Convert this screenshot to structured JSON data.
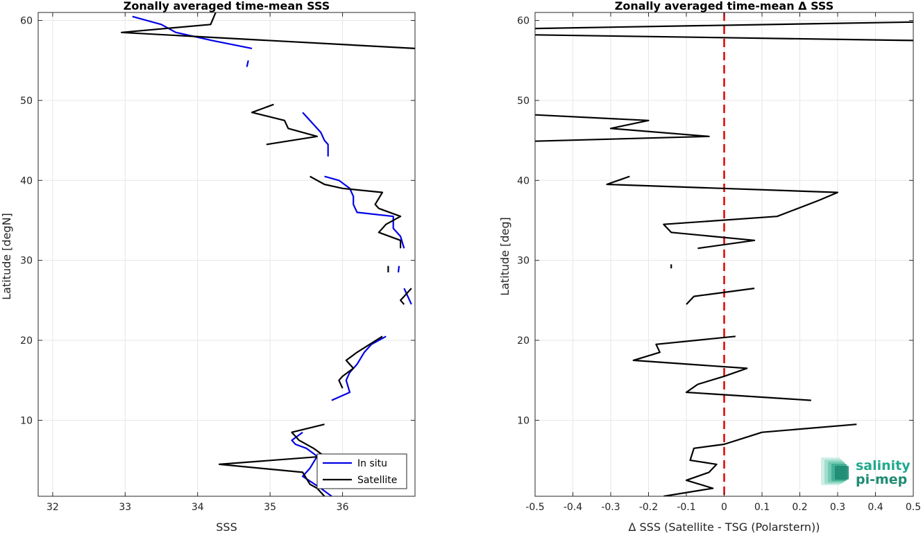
{
  "chart_data": [
    {
      "type": "line",
      "title": "Zonally averaged time-mean SSS",
      "xlabel": "SSS",
      "ylabel": "Latitude [degN]",
      "xlim": [
        31.8,
        37
      ],
      "ylim": [
        0.5,
        61
      ],
      "xticks": [
        32,
        33,
        34,
        35,
        36
      ],
      "yticks": [
        10,
        20,
        30,
        40,
        50,
        60
      ],
      "grid": true,
      "legend": "bottom-right",
      "series": [
        {
          "name": "In situ",
          "color": "#0000e6",
          "segments": [
            [
              [
                33.1,
                60.5
              ],
              [
                33.5,
                59.5
              ],
              [
                33.7,
                58.5
              ],
              [
                34.2,
                57.5
              ],
              [
                34.75,
                56.5
              ]
            ],
            [
              [
                34.68,
                54.2
              ],
              [
                34.7,
                55.0
              ]
            ],
            [
              [
                35.45,
                48.5
              ],
              [
                35.6,
                47.0
              ],
              [
                35.7,
                46.0
              ],
              [
                35.75,
                45.0
              ],
              [
                35.8,
                44.5
              ],
              [
                35.8,
                43.0
              ]
            ],
            [
              [
                35.75,
                40.5
              ],
              [
                35.95,
                40.0
              ],
              [
                36.1,
                39.0
              ],
              [
                36.15,
                38.0
              ],
              [
                36.15,
                37.0
              ],
              [
                36.2,
                36.0
              ],
              [
                36.7,
                35.5
              ],
              [
                36.7,
                34.0
              ],
              [
                36.8,
                33.0
              ],
              [
                36.85,
                31.5
              ]
            ],
            [
              [
                36.78,
                29.3
              ],
              [
                36.77,
                28.5
              ]
            ],
            [
              [
                36.85,
                26.5
              ],
              [
                36.95,
                24.5
              ]
            ],
            [
              [
                36.6,
                20.5
              ],
              [
                36.4,
                19.5
              ],
              [
                36.3,
                18.5
              ],
              [
                36.2,
                17.0
              ],
              [
                36.1,
                16.0
              ],
              [
                36.05,
                15.0
              ],
              [
                36.1,
                13.5
              ],
              [
                35.85,
                12.5
              ]
            ],
            [
              [
                35.45,
                8.5
              ],
              [
                35.3,
                7.5
              ],
              [
                35.35,
                7.0
              ],
              [
                35.5,
                6.5
              ],
              [
                35.65,
                5.5
              ],
              [
                35.55,
                4.0
              ],
              [
                35.45,
                3.0
              ],
              [
                35.7,
                1.5
              ],
              [
                35.85,
                0.5
              ]
            ]
          ]
        },
        {
          "name": "Satellite",
          "color": "#000000",
          "segments": [
            [
              [
                34.25,
                61.0
              ],
              [
                34.18,
                59.5
              ],
              [
                32.95,
                58.5
              ],
              [
                37.0,
                56.5
              ]
            ],
            [
              [
                35.05,
                49.5
              ],
              [
                34.75,
                48.5
              ],
              [
                35.2,
                47.5
              ],
              [
                35.25,
                46.5
              ],
              [
                35.65,
                45.5
              ],
              [
                34.95,
                44.5
              ]
            ],
            [
              [
                35.55,
                40.5
              ],
              [
                35.75,
                39.5
              ],
              [
                36.0,
                39.0
              ],
              [
                36.55,
                38.5
              ],
              [
                36.45,
                37.0
              ],
              [
                36.5,
                36.5
              ],
              [
                36.8,
                35.5
              ],
              [
                36.6,
                34.5
              ],
              [
                36.5,
                33.5
              ],
              [
                36.8,
                32.5
              ],
              [
                36.8,
                31.5
              ]
            ],
            [
              [
                36.63,
                29.3
              ],
              [
                36.63,
                28.5
              ]
            ],
            [
              [
                36.95,
                26.5
              ],
              [
                36.85,
                25.5
              ],
              [
                36.8,
                25.0
              ],
              [
                36.85,
                24.5
              ]
            ],
            [
              [
                36.55,
                20.5
              ],
              [
                36.2,
                18.5
              ],
              [
                36.05,
                17.5
              ],
              [
                36.15,
                16.5
              ],
              [
                36.0,
                15.5
              ],
              [
                35.95,
                15.0
              ],
              [
                36.0,
                14.0
              ]
            ],
            [
              [
                35.75,
                9.5
              ],
              [
                35.3,
                8.5
              ],
              [
                35.4,
                7.5
              ],
              [
                35.6,
                6.5
              ],
              [
                35.75,
                5.5
              ],
              [
                34.3,
                4.5
              ],
              [
                35.45,
                3.5
              ],
              [
                35.55,
                2.0
              ],
              [
                35.65,
                1.5
              ],
              [
                35.75,
                0.5
              ]
            ]
          ]
        }
      ]
    },
    {
      "type": "line",
      "title": "Zonally averaged time-mean Δ SSS",
      "xlabel": "Δ SSS (Satellite - TSG (Polarstern))",
      "ylabel": "Latitude [deg]",
      "xlim": [
        -0.5,
        0.5
      ],
      "ylim": [
        0.5,
        61
      ],
      "xticks": [
        -0.5,
        -0.4,
        -0.3,
        -0.2,
        -0.1,
        0,
        0.1,
        0.2,
        0.3,
        0.4,
        0.5
      ],
      "yticks": [
        10,
        20,
        30,
        40,
        50,
        60
      ],
      "xticklabels": [
        "-0.5",
        "-0.4",
        "-0.3",
        "-0.2",
        "-0.1",
        "0",
        "0.1",
        "0.2",
        "0.3",
        "0.4",
        "0.5"
      ],
      "grid": true,
      "reference_line": {
        "x": 0,
        "color": "#e00000",
        "style": "dashed"
      },
      "series": [
        {
          "color": "#000000",
          "segments": [
            [
              [
                -0.5,
                59.0
              ],
              [
                0.5,
                59.8
              ]
            ],
            [
              [
                -0.5,
                58.2
              ],
              [
                0.5,
                57.5
              ]
            ],
            [
              [
                -0.5,
                48.2
              ],
              [
                -0.2,
                47.5
              ],
              [
                -0.3,
                46.5
              ],
              [
                -0.04,
                45.5
              ],
              [
                -0.5,
                44.9
              ]
            ],
            [
              [
                -0.25,
                40.5
              ],
              [
                -0.31,
                39.5
              ],
              [
                0.3,
                38.5
              ],
              [
                0.25,
                37.5
              ],
              [
                0.14,
                35.5
              ],
              [
                -0.16,
                34.5
              ],
              [
                -0.14,
                33.5
              ],
              [
                0.08,
                32.5
              ],
              [
                -0.07,
                31.5
              ]
            ],
            [
              [
                -0.14,
                29.5
              ],
              [
                -0.14,
                29.0
              ]
            ],
            [
              [
                0.08,
                26.5
              ],
              [
                -0.08,
                25.5
              ],
              [
                -0.1,
                24.5
              ]
            ],
            [
              [
                0.03,
                20.5
              ],
              [
                -0.18,
                19.5
              ],
              [
                -0.17,
                18.5
              ],
              [
                -0.24,
                17.5
              ],
              [
                0.06,
                16.5
              ],
              [
                0.0,
                15.5
              ],
              [
                -0.07,
                14.5
              ],
              [
                -0.1,
                13.5
              ],
              [
                0.23,
                12.5
              ]
            ],
            [
              [
                0.35,
                9.5
              ],
              [
                0.1,
                8.5
              ],
              [
                0.0,
                7.0
              ],
              [
                -0.08,
                6.5
              ],
              [
                -0.09,
                5.0
              ],
              [
                -0.02,
                4.5
              ],
              [
                -0.04,
                3.5
              ],
              [
                -0.1,
                2.5
              ],
              [
                -0.03,
                1.5
              ],
              [
                -0.16,
                0.5
              ]
            ]
          ]
        }
      ]
    }
  ],
  "logo": {
    "line1": "salinity",
    "line2": "pi-mep"
  }
}
